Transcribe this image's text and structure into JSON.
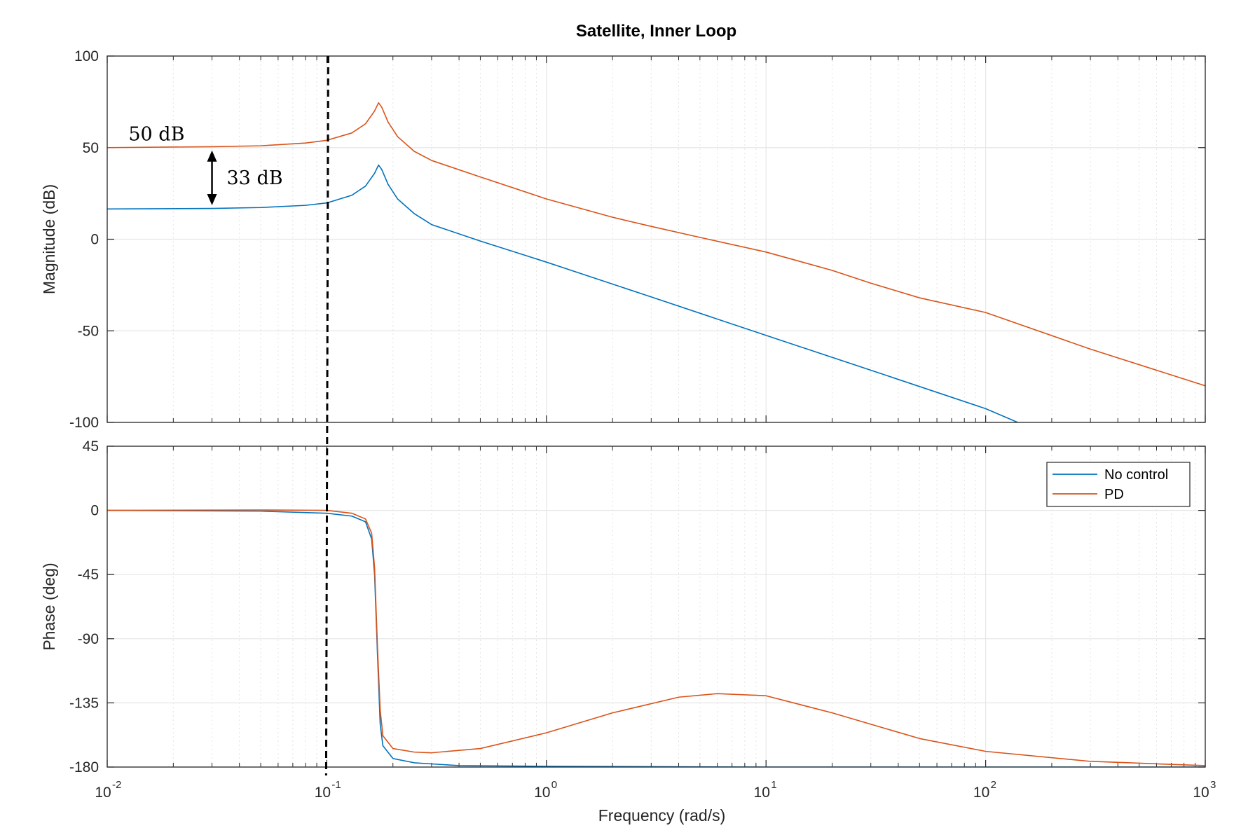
{
  "chart_data": {
    "type": "line",
    "title": "Satellite, Inner Loop",
    "xlabel": "Frequency  (rad/s)",
    "xscale": "log",
    "xlim": [
      0.01,
      1000
    ],
    "x_ticks": [
      {
        "base": "10",
        "exp": "-2"
      },
      {
        "base": "10",
        "exp": "-1"
      },
      {
        "base": "10",
        "exp": "0"
      },
      {
        "base": "10",
        "exp": "1"
      },
      {
        "base": "10",
        "exp": "2"
      },
      {
        "base": "10",
        "exp": "3"
      }
    ],
    "grid": true,
    "colors": {
      "no_control": "#0072BD",
      "pd": "#D95319",
      "grid": "#e6e6e6",
      "axis": "#262626"
    },
    "vertical_marker": {
      "x": 0.1,
      "style": "dashed",
      "color": "#000000"
    },
    "panels": [
      {
        "name": "magnitude",
        "ylabel": "Magnitude (dB)",
        "ylim": [
          -100,
          100
        ],
        "y_ticks": [
          "100",
          "50",
          "0",
          "-50",
          "-100"
        ],
        "series": [
          {
            "name": "No control",
            "color": "#0072BD",
            "points": [
              [
                0.01,
                16.5
              ],
              [
                0.03,
                16.8
              ],
              [
                0.05,
                17.3
              ],
              [
                0.08,
                18.5
              ],
              [
                0.1,
                19.8
              ],
              [
                0.13,
                24
              ],
              [
                0.15,
                29
              ],
              [
                0.165,
                36
              ],
              [
                0.172,
                40.5
              ],
              [
                0.178,
                38
              ],
              [
                0.19,
                30
              ],
              [
                0.21,
                22
              ],
              [
                0.25,
                14
              ],
              [
                0.3,
                8
              ],
              [
                0.5,
                -1
              ],
              [
                1,
                -12.5
              ],
              [
                3,
                -31.5
              ],
              [
                10,
                -52.5
              ],
              [
                30,
                -71.5
              ],
              [
                100,
                -92.5
              ],
              [
                140,
                -100
              ]
            ]
          },
          {
            "name": "PD",
            "color": "#D95319",
            "points": [
              [
                0.01,
                50
              ],
              [
                0.03,
                50.5
              ],
              [
                0.05,
                51
              ],
              [
                0.08,
                52.5
              ],
              [
                0.1,
                54
              ],
              [
                0.13,
                58
              ],
              [
                0.15,
                63
              ],
              [
                0.165,
                70
              ],
              [
                0.172,
                74.5
              ],
              [
                0.178,
                72
              ],
              [
                0.19,
                64
              ],
              [
                0.21,
                56
              ],
              [
                0.25,
                48
              ],
              [
                0.3,
                43
              ],
              [
                0.5,
                34
              ],
              [
                1,
                22
              ],
              [
                2,
                12
              ],
              [
                3,
                7
              ],
              [
                5,
                1
              ],
              [
                10,
                -7
              ],
              [
                20,
                -17
              ],
              [
                30,
                -24
              ],
              [
                50,
                -32
              ],
              [
                100,
                -40
              ],
              [
                300,
                -60
              ],
              [
                1000,
                -80
              ]
            ]
          }
        ],
        "annotations": [
          {
            "text": "50 dB",
            "x": 0.0125,
            "y": 54
          },
          {
            "text": "33 dB",
            "x": 0.035,
            "y": 30
          },
          {
            "type": "double_arrow",
            "x": 0.03,
            "y_from": 50,
            "y_to": 17
          }
        ]
      },
      {
        "name": "phase",
        "ylabel": "Phase (deg)",
        "ylim": [
          -180,
          45
        ],
        "y_ticks": [
          "45",
          "0",
          "-45",
          "-90",
          "-135",
          "-180"
        ],
        "series": [
          {
            "name": "No control",
            "color": "#0072BD",
            "points": [
              [
                0.01,
                0
              ],
              [
                0.05,
                -0.5
              ],
              [
                0.1,
                -2
              ],
              [
                0.13,
                -4
              ],
              [
                0.15,
                -8
              ],
              [
                0.16,
                -20
              ],
              [
                0.165,
                -45
              ],
              [
                0.17,
                -100
              ],
              [
                0.175,
                -150
              ],
              [
                0.18,
                -165
              ],
              [
                0.2,
                -174
              ],
              [
                0.25,
                -177
              ],
              [
                0.4,
                -179
              ],
              [
                1,
                -179.5
              ],
              [
                10,
                -180
              ],
              [
                1000,
                -180
              ]
            ]
          },
          {
            "name": "PD",
            "color": "#D95319",
            "points": [
              [
                0.01,
                0
              ],
              [
                0.05,
                0.3
              ],
              [
                0.1,
                0
              ],
              [
                0.13,
                -2
              ],
              [
                0.15,
                -6
              ],
              [
                0.16,
                -16
              ],
              [
                0.165,
                -40
              ],
              [
                0.17,
                -95
              ],
              [
                0.175,
                -140
              ],
              [
                0.18,
                -158
              ],
              [
                0.2,
                -167
              ],
              [
                0.25,
                -169.5
              ],
              [
                0.3,
                -170
              ],
              [
                0.5,
                -167
              ],
              [
                1,
                -156
              ],
              [
                2,
                -142
              ],
              [
                4,
                -131
              ],
              [
                6,
                -128.5
              ],
              [
                10,
                -130
              ],
              [
                20,
                -142
              ],
              [
                50,
                -160
              ],
              [
                100,
                -169
              ],
              [
                300,
                -176
              ],
              [
                1000,
                -179
              ]
            ]
          }
        ],
        "legend": {
          "placement": "top-right",
          "entries": [
            {
              "label": "No control",
              "color": "#0072BD"
            },
            {
              "label": "PD",
              "color": "#D95319"
            }
          ]
        }
      }
    ]
  }
}
